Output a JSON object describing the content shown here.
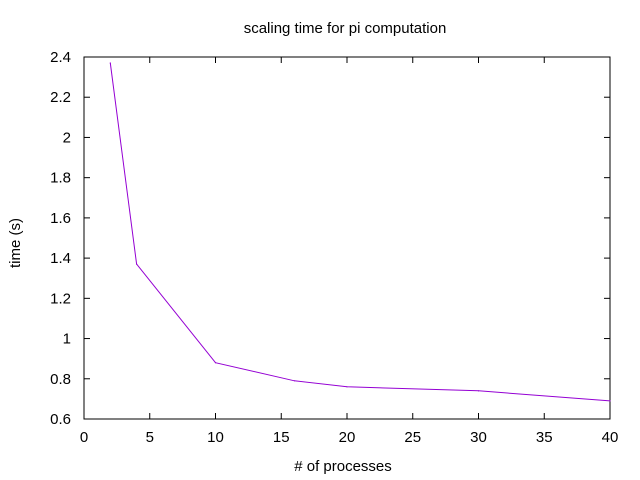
{
  "chart_data": {
    "type": "line",
    "title": "scaling time for pi computation",
    "xlabel": "# of processes",
    "ylabel": "time (s)",
    "xlim": [
      0,
      40
    ],
    "ylim": [
      0.6,
      2.4
    ],
    "x_ticks": [
      0,
      5,
      10,
      15,
      20,
      25,
      30,
      35,
      40
    ],
    "y_ticks": [
      0.6,
      0.8,
      1,
      1.2,
      1.4,
      1.6,
      1.8,
      2,
      2.2,
      2.4
    ],
    "x_tick_labels": [
      "0",
      "5",
      "10",
      "15",
      "20",
      "25",
      "30",
      "35",
      "40"
    ],
    "y_tick_labels": [
      "0.6",
      "0.8",
      "1",
      "1.2",
      "1.4",
      "1.6",
      "1.8",
      "2",
      "2.2",
      "2.4"
    ],
    "grid": false,
    "legend": "none",
    "series": [
      {
        "color": "#9400d3",
        "x": [
          2,
          4,
          10,
          16,
          20,
          30,
          40
        ],
        "y": [
          2.37,
          1.37,
          0.88,
          0.79,
          0.76,
          0.74,
          0.69
        ]
      }
    ]
  }
}
